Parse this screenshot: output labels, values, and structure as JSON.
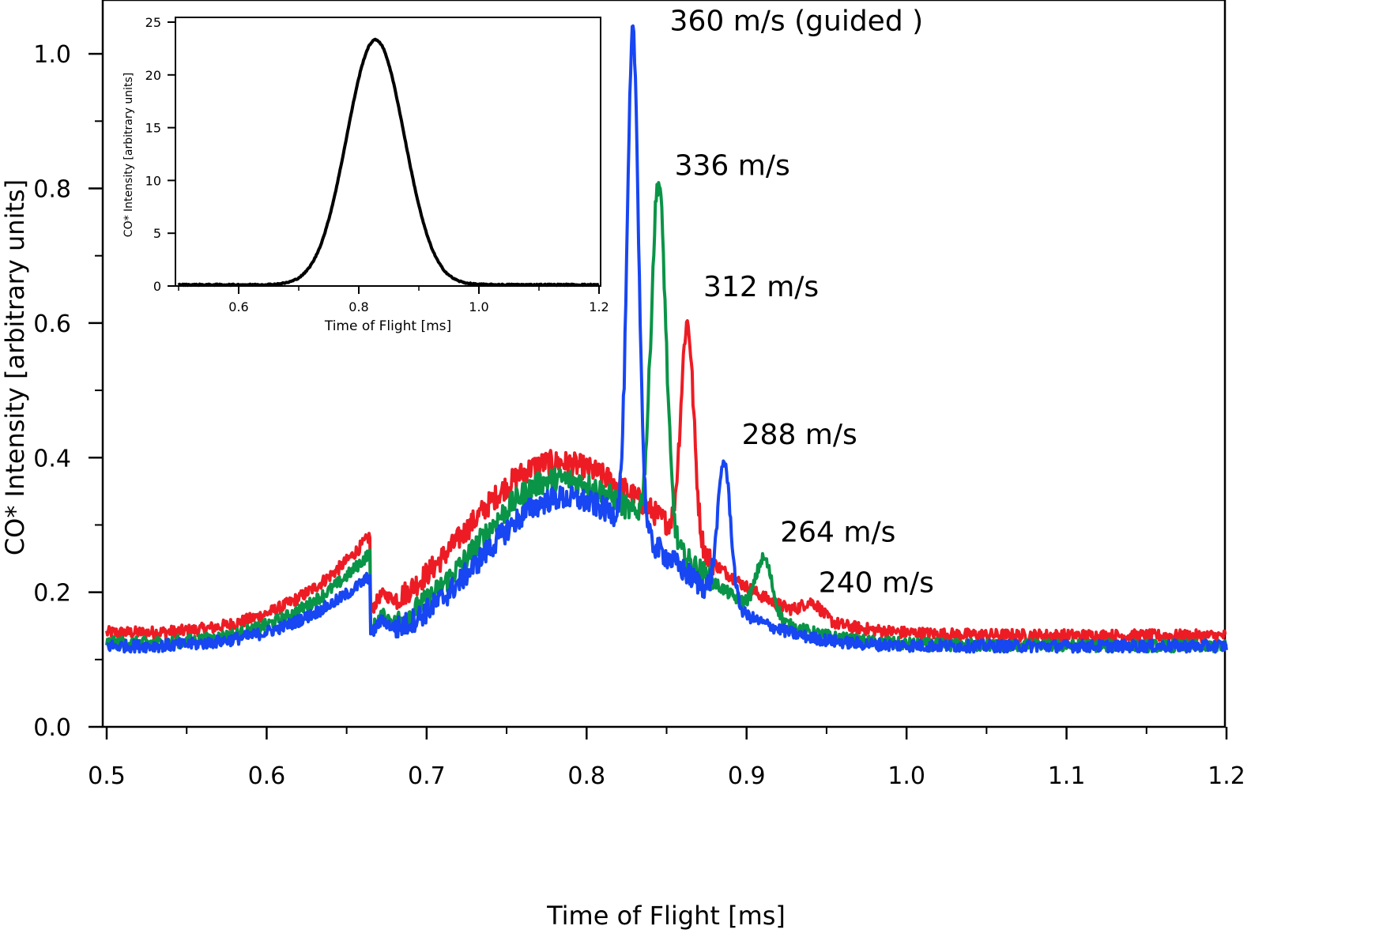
{
  "chart_data": [
    {
      "type": "line",
      "title": "",
      "xlabel": "Time of Flight [ms]",
      "ylabel": "CO* Intensity [arbitrary units]",
      "xlim": [
        0.5,
        1.2
      ],
      "ylim": [
        0.0,
        1.08
      ],
      "xticks": [
        0.5,
        0.6,
        0.7,
        0.8,
        0.9,
        1.0,
        1.1,
        1.2
      ],
      "xtick_labels": [
        "0.5",
        "0.6",
        "0.7",
        "0.8",
        "0.9",
        "1.0",
        "1.1",
        "1.2"
      ],
      "yticks": [
        0.0,
        0.2,
        0.4,
        0.6,
        0.8,
        1.0
      ],
      "ytick_labels": [
        "0.0",
        "0.2",
        "0.4",
        "0.6",
        "0.8",
        "1.0"
      ],
      "grid": false,
      "series": [
        {
          "name": "red",
          "color": "#ed1c24",
          "base": 0.14,
          "tail": 0.135,
          "step": 0.665,
          "pre_peak": 0.285,
          "hump": {
            "center": 0.78,
            "height": 0.255,
            "width_left": 0.055,
            "width_right": 0.075
          },
          "peaks": [
            {
              "label": "312 m/s",
              "x": 0.863,
              "height": 0.6,
              "width": 0.004
            },
            {
              "label": "240 m/s",
              "x": 0.941,
              "height": 0.185,
              "width": 0.006
            }
          ]
        },
        {
          "name": "green",
          "color": "#0a9447",
          "base": 0.125,
          "tail": 0.12,
          "step": 0.665,
          "pre_peak": 0.26,
          "hump": {
            "center": 0.782,
            "height": 0.245,
            "width_left": 0.05,
            "width_right": 0.07
          },
          "peaks": [
            {
              "label": "336 m/s",
              "x": 0.845,
              "height": 0.81,
              "width": 0.0045
            },
            {
              "label": "264 m/s",
              "x": 0.911,
              "height": 0.25,
              "width": 0.005
            }
          ]
        },
        {
          "name": "blue",
          "color": "#1746f2",
          "base": 0.12,
          "tail": 0.12,
          "step": 0.665,
          "pre_peak": 0.225,
          "hump": {
            "center": 0.785,
            "height": 0.22,
            "width_left": 0.05,
            "width_right": 0.065
          },
          "peaks": [
            {
              "label": "360 m/s (guided )",
              "x": 0.829,
              "height": 1.03,
              "width": 0.0035
            },
            {
              "label": "288 m/s",
              "x": 0.886,
              "height": 0.395,
              "width": 0.004
            }
          ]
        }
      ],
      "annotations": [
        {
          "text": "360 m/s (guided )",
          "x": 0.852,
          "y": 1.035
        },
        {
          "text": "336 m/s",
          "x": 0.855,
          "y": 0.82
        },
        {
          "text": "312 m/s",
          "x": 0.873,
          "y": 0.64
        },
        {
          "text": "288 m/s",
          "x": 0.897,
          "y": 0.42
        },
        {
          "text": "264 m/s",
          "x": 0.921,
          "y": 0.275
        },
        {
          "text": "240 m/s",
          "x": 0.945,
          "y": 0.2
        }
      ]
    },
    {
      "type": "line",
      "title": "",
      "xlabel": "Time of Flight [ms]",
      "ylabel": "CO* Intensity [arbitrary units]",
      "xlim": [
        0.5,
        1.2
      ],
      "ylim": [
        0,
        25
      ],
      "xticks": [
        0.6,
        0.8,
        1.0,
        1.2
      ],
      "xtick_labels": [
        "0.6",
        "0.8",
        "1.0",
        "1.2"
      ],
      "yticks": [
        0,
        5,
        10,
        15,
        20,
        25
      ],
      "ytick_labels": [
        "0",
        "5",
        "10",
        "15",
        "20",
        "25"
      ],
      "grid": false,
      "series": [
        {
          "name": "inset",
          "color": "#000000",
          "center": 0.828,
          "height": 23.2,
          "sigma": 0.048
        }
      ]
    }
  ]
}
